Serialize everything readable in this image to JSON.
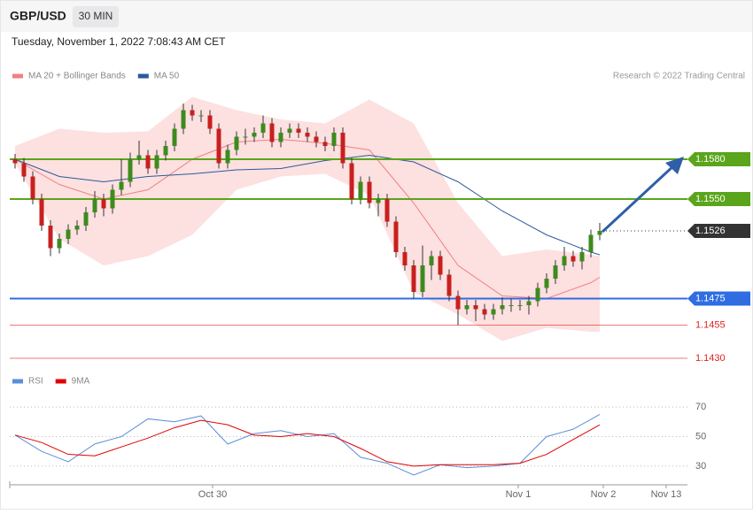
{
  "header": {
    "symbol": "GBP/USD",
    "timeframe": "30 MIN",
    "timestamp": "Tuesday, November 1, 2022 7:08:43 AM CET",
    "credit": "Research © 2022 Trading Central"
  },
  "chart_data": [
    {
      "type": "candlestick",
      "open": [
        1.158,
        1.1577,
        1.1567,
        1.155,
        1.153,
        1.1513,
        1.152,
        1.1527,
        1.153,
        1.154,
        1.155,
        1.1543,
        1.1557,
        1.1563,
        1.158,
        1.1583,
        1.1573,
        1.1583,
        1.159,
        1.1603,
        1.1617,
        1.1613,
        1.1613,
        1.1603,
        1.1577,
        1.1587,
        1.1597,
        1.1597,
        1.16,
        1.1607,
        1.1593,
        1.16,
        1.1603,
        1.16,
        1.1597,
        1.1593,
        1.159,
        1.16,
        1.1577,
        1.155,
        1.1563,
        1.1547,
        1.155,
        1.1533,
        1.151,
        1.15,
        1.148,
        1.15,
        1.1507,
        1.1493,
        1.1477,
        1.1467,
        1.147,
        1.1467,
        1.1463,
        1.1467,
        1.147,
        1.147,
        1.147,
        1.1473,
        1.1483,
        1.149,
        1.15,
        1.1507,
        1.1503,
        1.151,
        1.1523
      ],
      "high": [
        1.1584,
        1.1581,
        1.1571,
        1.1554,
        1.1534,
        1.1524,
        1.1531,
        1.1534,
        1.1544,
        1.1556,
        1.1554,
        1.1561,
        1.158,
        1.1585,
        1.1594,
        1.1587,
        1.1587,
        1.1594,
        1.1607,
        1.1622,
        1.1621,
        1.1617,
        1.1617,
        1.1607,
        1.1591,
        1.1601,
        1.1603,
        1.1604,
        1.1613,
        1.1611,
        1.1604,
        1.1607,
        1.1607,
        1.1604,
        1.1601,
        1.1597,
        1.1604,
        1.1604,
        1.1581,
        1.1567,
        1.1567,
        1.1554,
        1.1554,
        1.1537,
        1.1514,
        1.1504,
        1.1515,
        1.1511,
        1.1511,
        1.1497,
        1.1481,
        1.1474,
        1.1474,
        1.1471,
        1.1471,
        1.1476,
        1.1475,
        1.1474,
        1.1477,
        1.1487,
        1.1494,
        1.1504,
        1.1514,
        1.1511,
        1.1514,
        1.1527,
        1.1532
      ],
      "low": [
        1.1573,
        1.1563,
        1.1546,
        1.1526,
        1.1507,
        1.1509,
        1.1516,
        1.1523,
        1.1526,
        1.1536,
        1.1537,
        1.1539,
        1.1553,
        1.1559,
        1.1576,
        1.1569,
        1.1569,
        1.1579,
        1.1586,
        1.1599,
        1.1609,
        1.1608,
        1.1599,
        1.1573,
        1.1573,
        1.1583,
        1.1591,
        1.1593,
        1.1596,
        1.1589,
        1.1589,
        1.1596,
        1.1596,
        1.1593,
        1.1589,
        1.1586,
        1.1586,
        1.1573,
        1.1546,
        1.1546,
        1.1543,
        1.1537,
        1.1529,
        1.1506,
        1.1496,
        1.1475,
        1.1476,
        1.1489,
        1.1489,
        1.1473,
        1.1455,
        1.1463,
        1.1458,
        1.1459,
        1.1459,
        1.1463,
        1.1465,
        1.1466,
        1.1463,
        1.1469,
        1.1479,
        1.1486,
        1.1496,
        1.1499,
        1.1497,
        1.1506,
        1.1519
      ],
      "close": [
        1.1577,
        1.1567,
        1.155,
        1.153,
        1.1513,
        1.152,
        1.1527,
        1.153,
        1.154,
        1.155,
        1.1543,
        1.1557,
        1.1563,
        1.158,
        1.1583,
        1.1573,
        1.1583,
        1.159,
        1.1603,
        1.1617,
        1.1613,
        1.1613,
        1.1603,
        1.1577,
        1.1587,
        1.1597,
        1.1597,
        1.16,
        1.1607,
        1.1593,
        1.16,
        1.1603,
        1.16,
        1.1597,
        1.1593,
        1.159,
        1.16,
        1.1577,
        1.155,
        1.1563,
        1.1547,
        1.155,
        1.1533,
        1.151,
        1.15,
        1.148,
        1.15,
        1.1507,
        1.1493,
        1.1477,
        1.1467,
        1.147,
        1.1467,
        1.1463,
        1.1467,
        1.147,
        1.147,
        1.147,
        1.1473,
        1.1483,
        1.149,
        1.15,
        1.1507,
        1.1503,
        1.151,
        1.1523,
        1.1526
      ],
      "up_color": "#3d8b1e",
      "down_color": "#c8201e",
      "series": [
        {
          "name": "MA 20 + Bollinger Bands",
          "color": "#f08080",
          "band_color": "#fde0e0",
          "x": [
            0,
            5,
            10,
            15,
            20,
            25,
            30,
            35,
            40,
            45,
            50,
            55,
            60,
            65,
            66
          ],
          "values": [
            1.158,
            1.1561,
            1.155,
            1.1557,
            1.158,
            1.1593,
            1.1595,
            1.1592,
            1.1587,
            1.1547,
            1.15,
            1.1477,
            1.1475,
            1.1487,
            1.1491
          ],
          "upper": [
            1.159,
            1.1603,
            1.16,
            1.1601,
            1.1627,
            1.1617,
            1.161,
            1.1607,
            1.1625,
            1.1607,
            1.1547,
            1.1507,
            1.1512,
            1.1508,
            1.1507
          ],
          "lower": [
            1.1577,
            1.152,
            1.15,
            1.1507,
            1.1523,
            1.1557,
            1.1567,
            1.1569,
            1.1553,
            1.148,
            1.1463,
            1.1443,
            1.1453,
            1.145,
            1.145
          ]
        },
        {
          "name": "MA 50",
          "color": "#2b5a9a",
          "x": [
            0,
            5,
            10,
            15,
            20,
            25,
            30,
            35,
            40,
            45,
            50,
            55,
            60,
            65,
            66
          ],
          "values": [
            1.158,
            1.1567,
            1.1563,
            1.1567,
            1.1569,
            1.1572,
            1.1573,
            1.1579,
            1.1583,
            1.1578,
            1.1563,
            1.1541,
            1.1523,
            1.151,
            1.1508
          ]
        }
      ],
      "levels": [
        {
          "value": 1.158,
          "label": "1.1580",
          "color": "#5aa51b",
          "box": true
        },
        {
          "value": 1.155,
          "label": "1.1550",
          "color": "#5aa51b",
          "box": true
        },
        {
          "value": 1.1526,
          "label": "1.1526",
          "color": "#333333",
          "box": true,
          "dotted": true
        },
        {
          "value": 1.1475,
          "label": "1.1475",
          "color": "#2f6de1",
          "box": true
        },
        {
          "value": 1.1455,
          "label": "1.1455",
          "color": "#e02020",
          "box": false
        },
        {
          "value": 1.143,
          "label": "1.1430",
          "color": "#e02020",
          "box": false
        }
      ],
      "ylim": [
        1.1427,
        1.1637
      ]
    },
    {
      "type": "line",
      "series": [
        {
          "name": "RSI",
          "color": "#5b8fd9",
          "x": [
            0,
            3,
            6,
            9,
            12,
            15,
            18,
            21,
            24,
            27,
            30,
            33,
            36,
            39,
            42,
            45,
            48,
            51,
            54,
            57,
            60,
            63,
            66
          ],
          "values": [
            51,
            40,
            33,
            45,
            50,
            62,
            60,
            64,
            45,
            52,
            54,
            50,
            52,
            36,
            32,
            24,
            31,
            29,
            30,
            32,
            50,
            55,
            65
          ]
        },
        {
          "name": "9MA",
          "color": "#e00000",
          "x": [
            0,
            3,
            6,
            9,
            12,
            15,
            18,
            21,
            24,
            27,
            30,
            33,
            36,
            39,
            42,
            45,
            48,
            51,
            54,
            57,
            60,
            63,
            66
          ],
          "values": [
            51,
            46,
            38,
            37,
            43,
            49,
            56,
            61,
            58,
            51,
            50,
            52,
            50,
            42,
            33,
            30,
            31,
            31,
            31,
            32,
            38,
            48,
            58
          ]
        }
      ],
      "ylim": [
        15,
        85
      ],
      "yticks": [
        30,
        50,
        70
      ],
      "xticks": [
        {
          "value": 22.3,
          "label": "Oct 30"
        },
        {
          "value": 56.8,
          "label": "Nov 1"
        },
        {
          "value": 66.4,
          "label": "Nov 2"
        },
        {
          "value": 73.5,
          "label": "Nov 13"
        }
      ]
    }
  ]
}
